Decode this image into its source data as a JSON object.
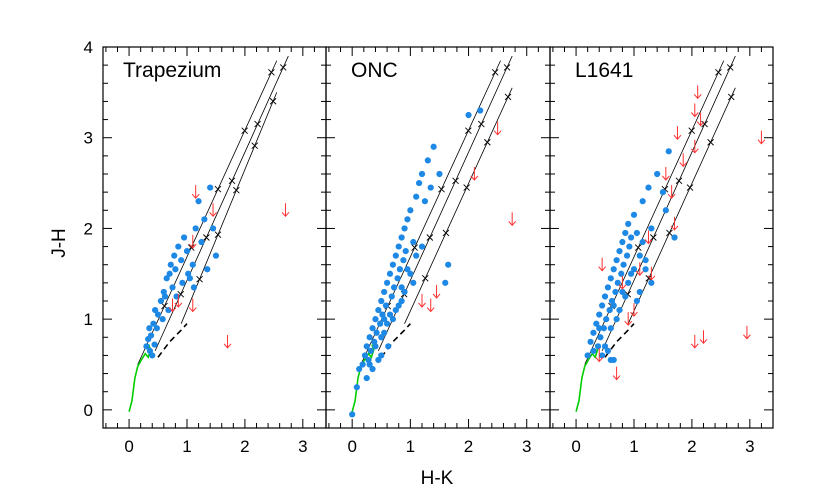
{
  "chart_data": [
    {
      "type": "scatter",
      "panel_label": "Trapezium",
      "xlabel": "H-K",
      "ylabel": "J-H",
      "xlim": [
        -0.45,
        3.4
      ],
      "ylim": [
        -0.2,
        4.0
      ],
      "x_ticks": [
        "0",
        "1",
        "2",
        "3"
      ],
      "y_ticks": [
        "0",
        "1",
        "2",
        "3",
        "4"
      ],
      "colors": {
        "detections": "#1e88e5",
        "upper_limits": "#ff3030",
        "dwarf_locus": "#00cc00",
        "ctts_locus": "#000000",
        "reddening": "#000000"
      },
      "reddening_lines": [
        {
          "x": [
            0.15,
            2.55
          ],
          "y": [
            0.5,
            3.85
          ]
        },
        {
          "x": [
            0.45,
            2.75
          ],
          "y": [
            0.65,
            3.9
          ]
        },
        {
          "x": [
            0.9,
            2.55
          ],
          "y": [
            0.95,
            3.5
          ]
        }
      ],
      "detections": [
        [
          0.3,
          0.7
        ],
        [
          0.33,
          0.78
        ],
        [
          0.4,
          0.6
        ],
        [
          0.35,
          0.9
        ],
        [
          0.42,
          0.95
        ],
        [
          0.45,
          1.1
        ],
        [
          0.5,
          1.05
        ],
        [
          0.55,
          1.2
        ],
        [
          0.6,
          1.3
        ],
        [
          0.62,
          1.25
        ],
        [
          0.65,
          1.45
        ],
        [
          0.7,
          1.5
        ],
        [
          0.72,
          1.6
        ],
        [
          0.75,
          1.35
        ],
        [
          0.78,
          1.7
        ],
        [
          0.8,
          1.55
        ],
        [
          0.85,
          1.8
        ],
        [
          0.9,
          1.65
        ],
        [
          0.95,
          1.9
        ],
        [
          1.0,
          1.75
        ],
        [
          1.05,
          1.45
        ],
        [
          1.1,
          1.6
        ],
        [
          1.15,
          2.0
        ],
        [
          1.2,
          2.3
        ],
        [
          1.25,
          1.85
        ],
        [
          1.3,
          2.1
        ],
        [
          1.35,
          1.55
        ],
        [
          1.4,
          2.45
        ],
        [
          1.45,
          2.0
        ],
        [
          1.5,
          1.7
        ],
        [
          0.38,
          0.82
        ],
        [
          0.48,
          0.9
        ],
        [
          0.58,
          1.0
        ],
        [
          0.68,
          1.1
        ],
        [
          0.82,
          1.25
        ],
        [
          0.92,
          1.4
        ],
        [
          1.02,
          1.5
        ],
        [
          1.12,
          1.35
        ],
        [
          0.36,
          0.65
        ],
        [
          0.44,
          0.72
        ]
      ],
      "upper_limits": [
        [
          1.15,
          2.4
        ],
        [
          1.45,
          2.2
        ],
        [
          1.1,
          1.85
        ],
        [
          0.85,
          1.2
        ],
        [
          1.1,
          1.15
        ],
        [
          0.75,
          1.15
        ],
        [
          2.7,
          2.2
        ],
        [
          1.7,
          0.75
        ]
      ]
    },
    {
      "type": "scatter",
      "panel_label": "ONC",
      "xlim": [
        -0.45,
        3.4
      ],
      "ylim": [
        -0.2,
        4.0
      ],
      "x_ticks": [
        "0",
        "1",
        "2",
        "3"
      ],
      "reddening_lines": [
        {
          "x": [
            0.15,
            2.55
          ],
          "y": [
            0.5,
            3.85
          ]
        },
        {
          "x": [
            0.45,
            2.75
          ],
          "y": [
            0.65,
            3.9
          ]
        },
        {
          "x": [
            0.9,
            2.75
          ],
          "y": [
            0.95,
            3.55
          ]
        }
      ],
      "detections": [
        [
          0.0,
          -0.05
        ],
        [
          0.08,
          0.25
        ],
        [
          0.12,
          0.45
        ],
        [
          0.18,
          0.5
        ],
        [
          0.22,
          0.6
        ],
        [
          0.25,
          0.7
        ],
        [
          0.28,
          0.55
        ],
        [
          0.3,
          0.8
        ],
        [
          0.32,
          0.65
        ],
        [
          0.35,
          0.9
        ],
        [
          0.38,
          0.75
        ],
        [
          0.4,
          1.0
        ],
        [
          0.42,
          0.85
        ],
        [
          0.45,
          1.1
        ],
        [
          0.48,
          0.95
        ],
        [
          0.5,
          1.2
        ],
        [
          0.52,
          1.05
        ],
        [
          0.55,
          1.3
        ],
        [
          0.58,
          1.15
        ],
        [
          0.6,
          1.4
        ],
        [
          0.62,
          0.7
        ],
        [
          0.65,
          1.5
        ],
        [
          0.68,
          1.25
        ],
        [
          0.7,
          1.6
        ],
        [
          0.72,
          1.35
        ],
        [
          0.75,
          1.7
        ],
        [
          0.78,
          1.45
        ],
        [
          0.8,
          1.8
        ],
        [
          0.82,
          1.55
        ],
        [
          0.85,
          1.9
        ],
        [
          0.88,
          1.65
        ],
        [
          0.9,
          2.0
        ],
        [
          0.92,
          1.75
        ],
        [
          0.95,
          2.1
        ],
        [
          1.0,
          2.2
        ],
        [
          1.05,
          1.85
        ],
        [
          1.1,
          2.35
        ],
        [
          1.15,
          2.5
        ],
        [
          1.2,
          2.6
        ],
        [
          1.25,
          2.3
        ],
        [
          1.3,
          2.75
        ],
        [
          1.35,
          2.45
        ],
        [
          1.4,
          2.9
        ],
        [
          1.5,
          2.6
        ],
        [
          1.6,
          1.4
        ],
        [
          1.65,
          1.6
        ],
        [
          2.0,
          3.25
        ],
        [
          2.2,
          3.3
        ],
        [
          0.55,
          0.85
        ],
        [
          0.6,
          0.95
        ],
        [
          0.45,
          0.55
        ],
        [
          0.5,
          0.6
        ],
        [
          0.7,
          1.0
        ],
        [
          0.75,
          1.1
        ],
        [
          0.85,
          1.2
        ],
        [
          0.9,
          1.3
        ],
        [
          1.0,
          1.5
        ],
        [
          1.05,
          1.4
        ],
        [
          0.35,
          0.45
        ],
        [
          0.25,
          0.35
        ],
        [
          0.3,
          0.5
        ],
        [
          0.65,
          1.05
        ],
        [
          0.95,
          1.55
        ],
        [
          1.1,
          1.7
        ],
        [
          1.2,
          1.8
        ],
        [
          0.4,
          0.7
        ],
        [
          0.5,
          0.8
        ],
        [
          0.55,
          1.0
        ],
        [
          0.8,
          1.15
        ],
        [
          0.85,
          1.35
        ]
      ],
      "upper_limits": [
        [
          2.5,
          3.1
        ],
        [
          2.1,
          2.6
        ],
        [
          2.75,
          2.1
        ],
        [
          1.2,
          1.2
        ],
        [
          1.35,
          1.15
        ],
        [
          1.45,
          1.3
        ]
      ]
    },
    {
      "type": "scatter",
      "panel_label": "L1641",
      "xlim": [
        -0.45,
        3.4
      ],
      "ylim": [
        -0.2,
        4.0
      ],
      "x_ticks": [
        "0",
        "1",
        "2",
        "3"
      ],
      "reddening_lines": [
        {
          "x": [
            0.15,
            2.55
          ],
          "y": [
            0.5,
            3.85
          ]
        },
        {
          "x": [
            0.45,
            2.75
          ],
          "y": [
            0.65,
            3.9
          ]
        },
        {
          "x": [
            0.9,
            2.75
          ],
          "y": [
            0.95,
            3.55
          ]
        }
      ],
      "detections": [
        [
          0.2,
          0.6
        ],
        [
          0.25,
          0.75
        ],
        [
          0.3,
          0.85
        ],
        [
          0.35,
          0.95
        ],
        [
          0.38,
          0.7
        ],
        [
          0.4,
          1.05
        ],
        [
          0.42,
          0.8
        ],
        [
          0.45,
          1.15
        ],
        [
          0.48,
          0.9
        ],
        [
          0.5,
          1.25
        ],
        [
          0.52,
          1.0
        ],
        [
          0.55,
          1.35
        ],
        [
          0.58,
          1.1
        ],
        [
          0.6,
          1.45
        ],
        [
          0.62,
          1.2
        ],
        [
          0.65,
          1.55
        ],
        [
          0.68,
          1.3
        ],
        [
          0.7,
          1.65
        ],
        [
          0.72,
          1.4
        ],
        [
          0.75,
          1.75
        ],
        [
          0.78,
          1.5
        ],
        [
          0.8,
          1.85
        ],
        [
          0.82,
          1.6
        ],
        [
          0.85,
          1.95
        ],
        [
          0.88,
          1.7
        ],
        [
          0.9,
          2.05
        ],
        [
          0.92,
          1.8
        ],
        [
          0.95,
          1.9
        ],
        [
          1.0,
          2.15
        ],
        [
          1.05,
          1.95
        ],
        [
          1.1,
          1.7
        ],
        [
          1.15,
          2.3
        ],
        [
          1.2,
          1.55
        ],
        [
          1.25,
          2.45
        ],
        [
          1.3,
          2.0
        ],
        [
          1.4,
          2.6
        ],
        [
          1.5,
          2.4
        ],
        [
          1.55,
          2.2
        ],
        [
          1.6,
          2.85
        ],
        [
          1.7,
          1.9
        ],
        [
          0.6,
          0.55
        ],
        [
          0.65,
          0.55
        ],
        [
          0.55,
          0.65
        ],
        [
          0.7,
          1.0
        ],
        [
          0.75,
          1.1
        ],
        [
          0.85,
          1.25
        ],
        [
          0.9,
          1.4
        ],
        [
          1.0,
          1.55
        ],
        [
          1.05,
          1.2
        ],
        [
          1.1,
          1.3
        ],
        [
          0.45,
          0.6
        ],
        [
          0.5,
          0.7
        ],
        [
          0.4,
          0.9
        ],
        [
          0.3,
          0.65
        ],
        [
          0.6,
          0.9
        ],
        [
          0.65,
          1.15
        ],
        [
          0.8,
          1.3
        ],
        [
          0.95,
          1.5
        ],
        [
          1.15,
          1.85
        ],
        [
          1.2,
          1.65
        ],
        [
          1.3,
          1.4
        ]
      ],
      "upper_limits": [
        [
          2.1,
          3.5
        ],
        [
          2.05,
          3.3
        ],
        [
          2.15,
          3.2
        ],
        [
          1.75,
          3.05
        ],
        [
          2.05,
          2.9
        ],
        [
          1.85,
          2.75
        ],
        [
          1.55,
          2.6
        ],
        [
          1.65,
          2.4
        ],
        [
          1.7,
          2.05
        ],
        [
          1.25,
          1.9
        ],
        [
          0.45,
          1.6
        ],
        [
          1.1,
          1.55
        ],
        [
          1.3,
          1.5
        ],
        [
          0.8,
          1.4
        ],
        [
          0.4,
          0.6
        ],
        [
          0.7,
          0.4
        ],
        [
          2.05,
          0.75
        ],
        [
          2.2,
          0.8
        ],
        [
          2.95,
          0.85
        ],
        [
          3.2,
          3.0
        ],
        [
          0.9,
          1.0
        ],
        [
          1.0,
          1.1
        ]
      ]
    }
  ]
}
